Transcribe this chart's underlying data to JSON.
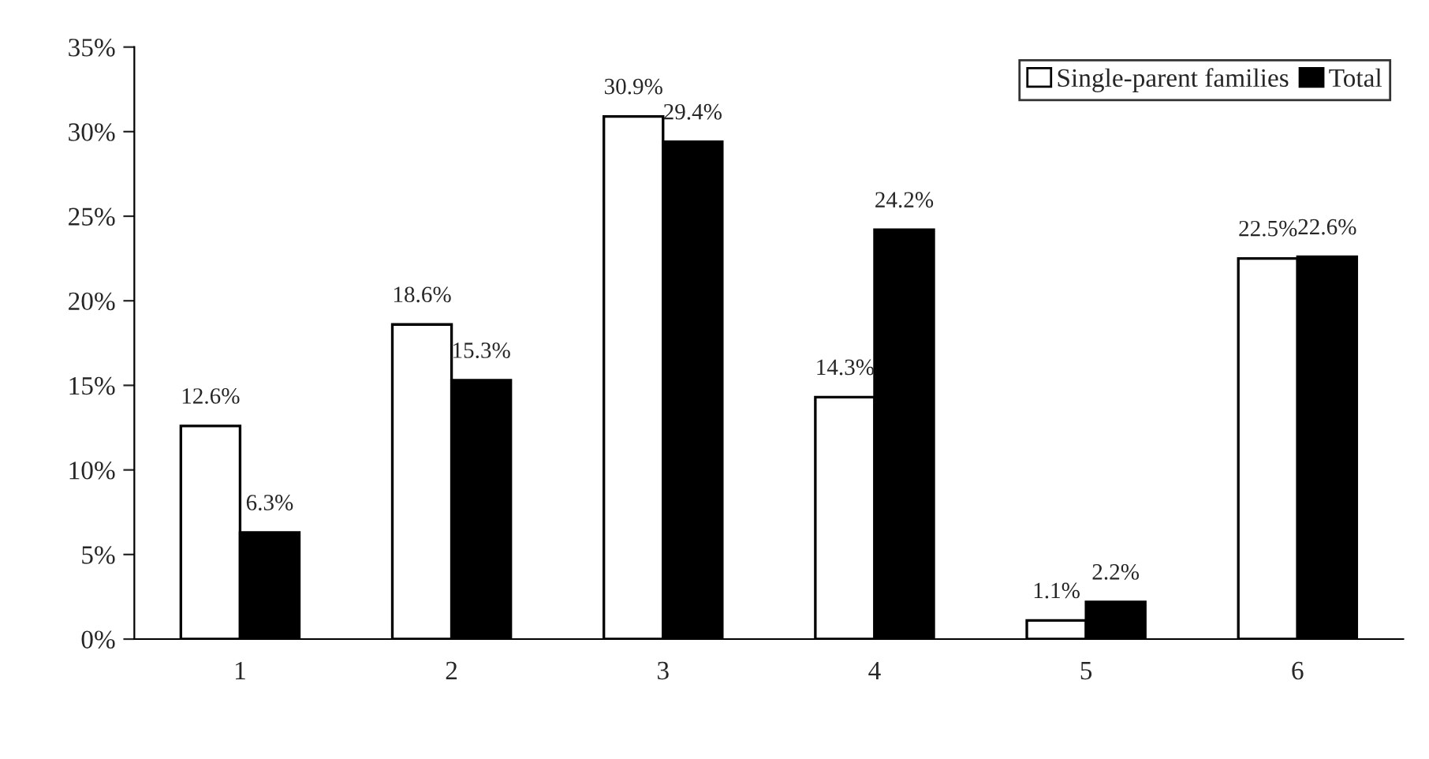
{
  "chart_data": {
    "type": "bar",
    "categories": [
      "1",
      "2",
      "3",
      "4",
      "5",
      "6"
    ],
    "series": [
      {
        "name": "Single-parent families",
        "color": "#ffffff",
        "values": [
          12.6,
          18.6,
          30.9,
          14.3,
          1.1,
          22.5
        ],
        "value_labels": [
          "12.6%",
          "18.6%",
          "30.9%",
          "14.3%",
          "1.1%",
          "22.5%"
        ]
      },
      {
        "name": "Total",
        "color": "#000000",
        "values": [
          6.3,
          15.3,
          29.4,
          24.2,
          2.2,
          22.6
        ],
        "value_labels": [
          "6.3%",
          "15.3%",
          "29.4%",
          "24.2%",
          "2.2%",
          "22.6%"
        ]
      }
    ],
    "ylim": [
      0,
      35
    ],
    "yticks": [
      {
        "value": 0,
        "label": "0%"
      },
      {
        "value": 5,
        "label": "5%"
      },
      {
        "value": 10,
        "label": "10%"
      },
      {
        "value": 15,
        "label": "15%"
      },
      {
        "value": 20,
        "label": "20%"
      },
      {
        "value": 25,
        "label": "25%"
      },
      {
        "value": 30,
        "label": "30%"
      },
      {
        "value": 35,
        "label": "35%"
      }
    ],
    "legend": "top right",
    "grid": false
  }
}
